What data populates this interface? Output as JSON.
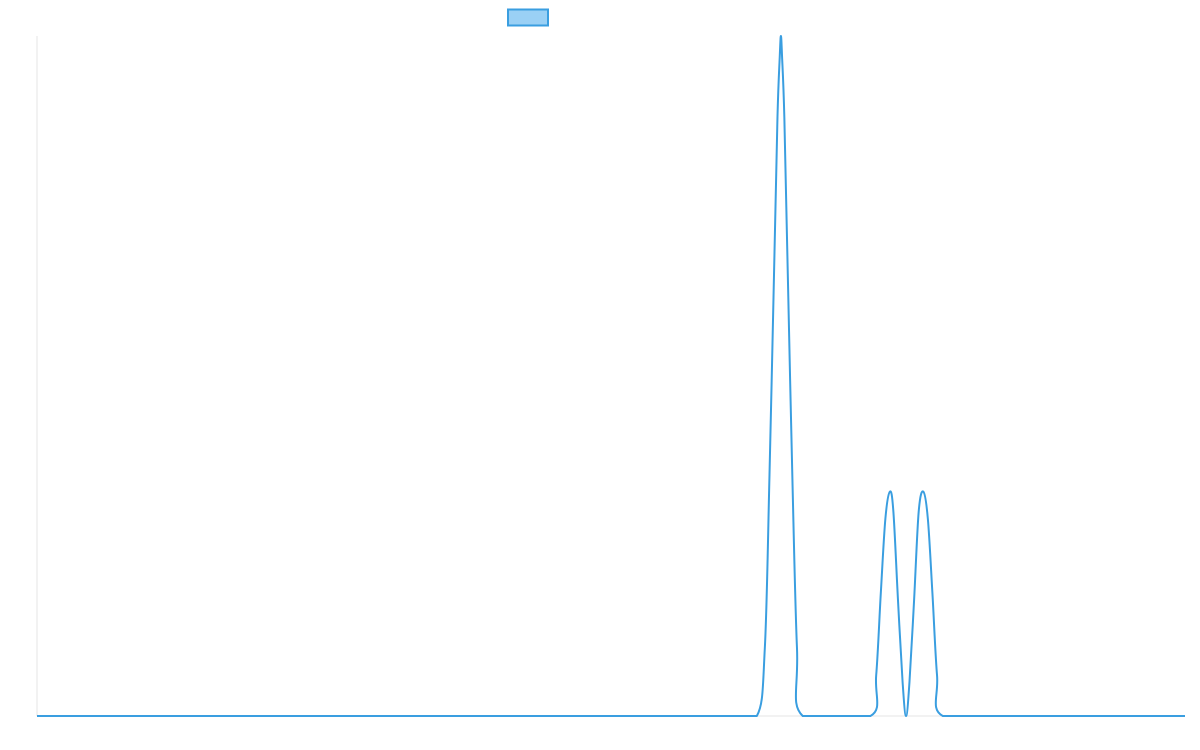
{
  "colors": {
    "line": "#3a9ee0",
    "legend_fill": "#9ad0f5",
    "legend_stroke": "#3a9ee0",
    "axis": "#e6e6e6",
    "background": "#ffffff"
  },
  "chart_data": {
    "type": "line",
    "title": "",
    "xlabel": "",
    "ylabel": "",
    "grid": false,
    "legend_placement": "top-center",
    "xlim": [
      0,
      1000
    ],
    "ylim": [
      0,
      1.0
    ],
    "series": [
      {
        "points": [
          [
            0,
            0
          ],
          [
            100,
            0
          ],
          [
            200,
            0
          ],
          [
            300,
            0
          ],
          [
            400,
            0
          ],
          [
            500,
            0
          ],
          [
            600,
            0
          ],
          [
            627,
            0
          ],
          [
            634,
            0.1
          ],
          [
            638,
            0.35
          ],
          [
            642,
            0.65
          ],
          [
            645,
            0.88
          ],
          [
            647,
            0.97
          ],
          [
            648,
            1.0
          ],
          [
            649,
            0.97
          ],
          [
            651,
            0.88
          ],
          [
            654,
            0.65
          ],
          [
            658,
            0.35
          ],
          [
            662,
            0.1
          ],
          [
            667,
            0
          ],
          [
            726,
            0
          ],
          [
            731,
            0.06
          ],
          [
            735,
            0.18
          ],
          [
            739,
            0.29
          ],
          [
            743,
            0.33
          ],
          [
            746,
            0.3
          ],
          [
            750,
            0.17
          ],
          [
            754,
            0.05
          ],
          [
            757,
            0
          ],
          [
            760,
            0.05
          ],
          [
            764,
            0.17
          ],
          [
            768,
            0.3
          ],
          [
            772,
            0.33
          ],
          [
            776,
            0.29
          ],
          [
            780,
            0.18
          ],
          [
            784,
            0.06
          ],
          [
            789,
            0
          ],
          [
            850,
            0
          ],
          [
            900,
            0
          ],
          [
            1000,
            0
          ]
        ]
      }
    ]
  }
}
